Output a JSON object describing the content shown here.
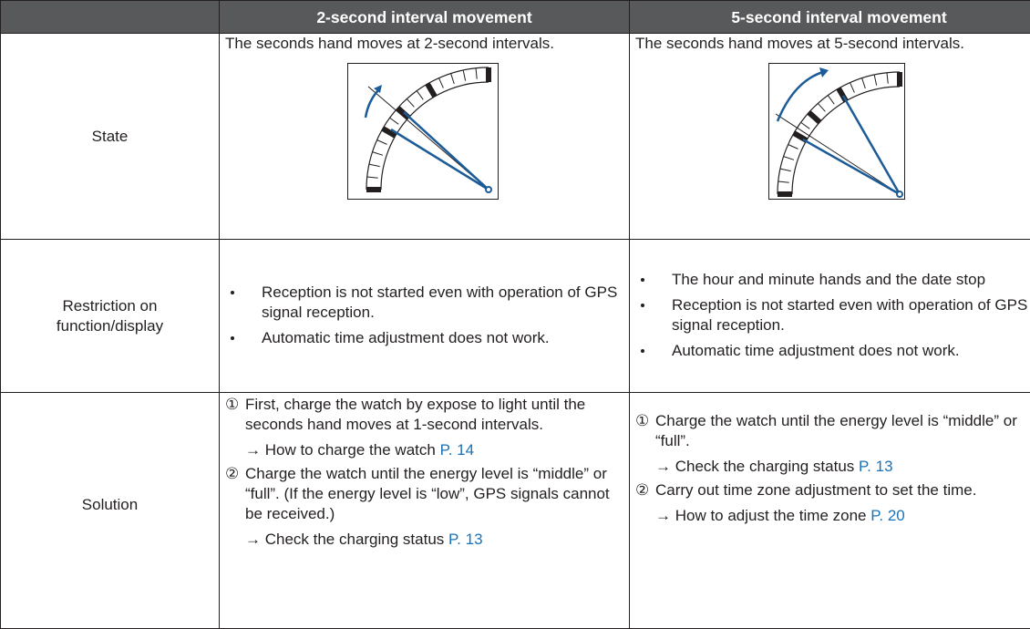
{
  "table": {
    "headers": [
      "2-second interval movement",
      "5-second interval movement"
    ],
    "rows": [
      {
        "label": "State",
        "cells": [
          {
            "text": "The seconds hand moves at 2-second intervals."
          },
          {
            "text": "The seconds hand moves at 5-second intervals."
          }
        ]
      },
      {
        "label": "Restriction on function/display",
        "cells": [
          {
            "bullets": [
              "Reception is not started even with operation of GPS signal reception.",
              "Automatic time adjustment does not work."
            ]
          },
          {
            "bullets": [
              "The hour and minute hands and the date stop",
              "Reception is not started even with operation of GPS signal reception.",
              "Automatic time adjustment does not work."
            ]
          }
        ]
      },
      {
        "label": "Solution",
        "cells": [
          {
            "steps": [
              {
                "marker": "①",
                "text": "First, charge the watch by expose to light until the seconds hand moves at 1-second intervals.",
                "ref": "→ How to charge the watch",
                "page": "P. 14"
              },
              {
                "marker": "②",
                "text": "Charge the watch until the energy level is “middle” or “full”. (If the energy level is “low”, GPS signals cannot be received.)",
                "ref": "→ Check the charging status",
                "page": "P. 13"
              }
            ]
          },
          {
            "steps": [
              {
                "marker": "①",
                "text": "Charge the watch until the energy level is “middle” or “full”.",
                "ref": "→ Check the charging status",
                "page": "P. 13"
              },
              {
                "marker": "②",
                "text": "Carry out time zone adjustment to set the time.",
                "ref": "→ How to adjust the time zone",
                "page": "P. 20"
              }
            ]
          }
        ]
      }
    ]
  }
}
